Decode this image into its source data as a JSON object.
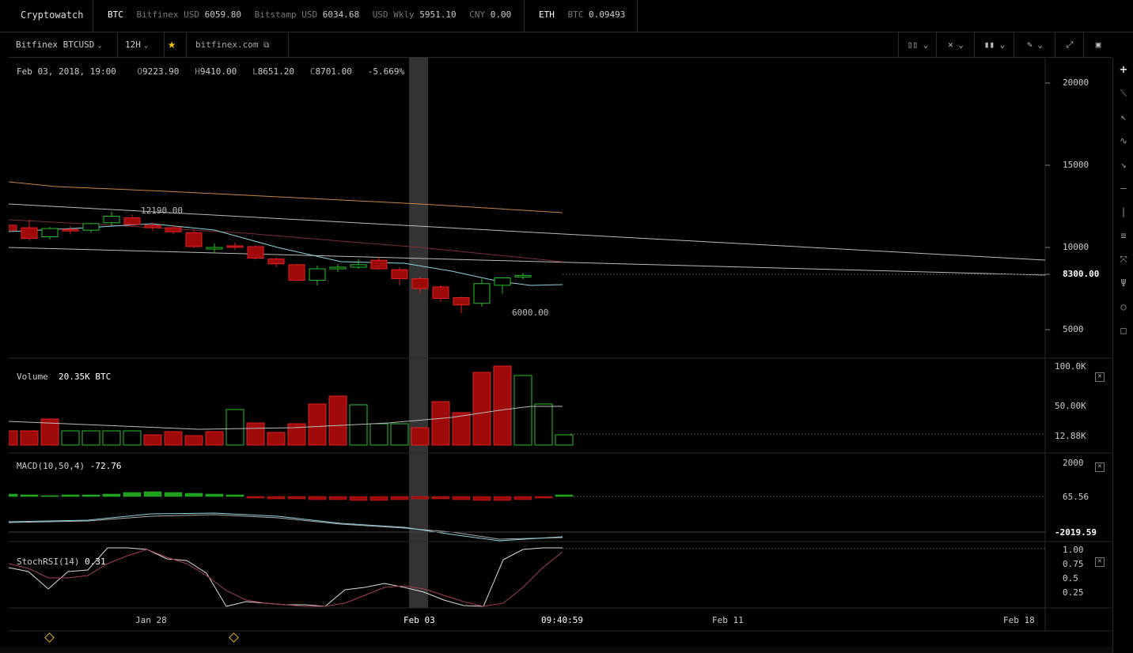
{
  "topbar": {
    "brand": "Cryptowatch",
    "btc": {
      "symbol": "BTC",
      "quotes": [
        {
          "label": "Bitfinex USD",
          "value": "6059.80"
        },
        {
          "label": "Bitstamp USD",
          "value": "6034.68"
        },
        {
          "label": "USD Wkly",
          "value": "5951.10"
        },
        {
          "label": "CNY",
          "value": "0.00"
        }
      ]
    },
    "eth": {
      "symbol": "ETH",
      "label": "BTC",
      "value": "0.09493"
    }
  },
  "toolbar": {
    "market": "Bitfinex BTCUSD",
    "period": "12H",
    "star_icon": "star-icon",
    "exchange_link": "bitfinex.com",
    "right_tools": [
      "candle-type-icon",
      "indicators-icon",
      "chart-style-icon",
      "draw-icon",
      "fullscreen-icon",
      "screenshot-icon"
    ]
  },
  "ohlc": {
    "date": "Feb 03, 2018, 19:00",
    "o_label": "O",
    "open": "9223.90",
    "h_label": "H",
    "high": "9410.00",
    "l_label": "L",
    "low": "8651.20",
    "c_label": "C",
    "close": "8701.00",
    "change": "-5.669%"
  },
  "price_axis": {
    "ticks": [
      "20000",
      "15000",
      "10000",
      "5000"
    ],
    "current": "8300.00"
  },
  "annotations": {
    "high": "12190.00",
    "low": "6000.00"
  },
  "volume": {
    "label": "Volume",
    "value": "20.35K BTC",
    "ticks": [
      "100.0K",
      "50.00K"
    ],
    "current": "12.88K"
  },
  "macd": {
    "label": "MACD(10,50,4)",
    "value": "-72.76",
    "ticks": [
      "2000"
    ],
    "current": "65.56",
    "low": "-2019.59"
  },
  "stochrsi": {
    "label": "StochRSI(14)",
    "value": "0.31",
    "ticks": [
      "1.00",
      "0.75",
      "0.5",
      "0.25"
    ]
  },
  "time_axis": {
    "labels": [
      "Jan 28",
      "Feb 03",
      "09:40:59",
      "Feb 11",
      "Feb 18"
    ]
  },
  "sidebar_tools": [
    "plus-icon",
    "line-icon",
    "arrow-icon",
    "curve-icon",
    "ray-icon",
    "horizontal-line-icon",
    "vertical-line-icon",
    "parallel-channel-icon",
    "fib-fan-icon",
    "pitchfork-icon",
    "circle-icon",
    "rectangle-icon"
  ],
  "colors": {
    "up": "#27c227",
    "down": "#9e0a0a",
    "down_border": "#e02020",
    "ema_orange": "#c8844a",
    "ema_blue": "#8fd3e0",
    "trend": "#bbbbbb",
    "highlight": "#333333"
  }
}
